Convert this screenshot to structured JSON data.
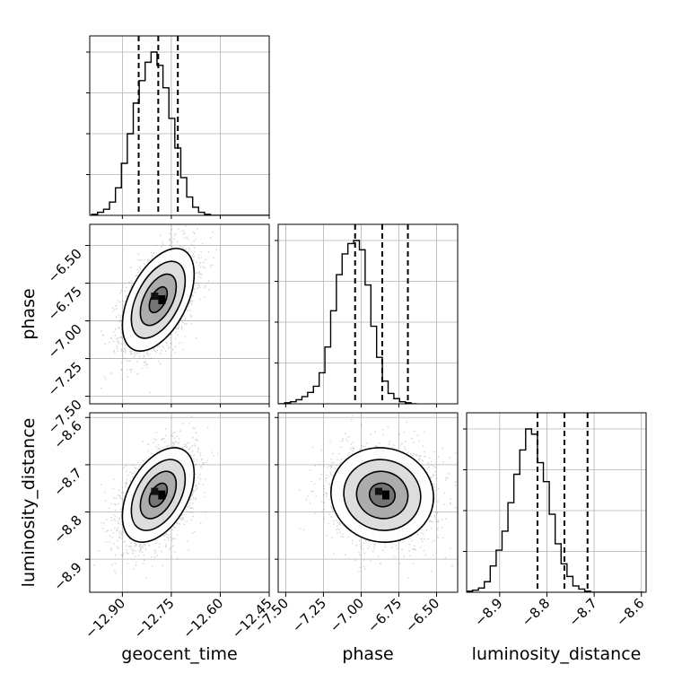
{
  "chart_data": {
    "type": "corner",
    "parameters": [
      "geocent_time",
      "phase",
      "luminosity_distance"
    ],
    "ranges": {
      "geocent_time": [
        -13.0,
        -12.45
      ],
      "phase": [
        -7.55,
        -6.36
      ],
      "luminosity_distance": [
        -8.97,
        -8.59
      ]
    },
    "ticks": {
      "geocent_time": [
        -12.9,
        -12.75,
        -12.6,
        -12.45
      ],
      "phase": [
        -7.5,
        -7.25,
        -7.0,
        -6.75,
        -6.5
      ],
      "luminosity_distance": [
        -8.9,
        -8.8,
        -8.7,
        -8.6
      ]
    },
    "tick_labels": {
      "geocent_time": [
        "−12.90",
        "−12.75",
        "−12.60",
        "−12.45"
      ],
      "phase_bottom": [
        "−7.50",
        "−7.25",
        "−7.00",
        "−6.75",
        "−6.50"
      ],
      "phase_left": [
        "−6.50",
        "−6.75",
        "−7.00",
        "−7.25",
        "−7.50"
      ],
      "luminosity_distance_bottom": [
        "−8.9",
        "−8.8",
        "−8.7",
        "−8.6"
      ],
      "luminosity_distance_left": [
        "−8.6",
        "−8.7",
        "−8.8",
        "−8.9"
      ]
    },
    "axis_labels": {
      "bottom": [
        "geocent_time",
        "phase",
        "luminosity_distance"
      ],
      "left": [
        "phase",
        "luminosity_distance"
      ]
    },
    "quantiles": {
      "geocent_time": [
        -12.85,
        -12.79,
        -12.73
      ],
      "phase": [
        -7.04,
        -6.86,
        -6.69
      ],
      "luminosity_distance": [
        -8.82,
        -8.763,
        -8.714
      ]
    },
    "histograms": {
      "geocent_time": {
        "bin_start": -12.994,
        "bin_width": 0.0182,
        "counts": [
          1,
          3,
          6,
          13,
          27,
          51,
          80,
          110,
          132,
          150,
          160,
          147,
          125,
          95,
          66,
          37,
          18,
          8,
          3,
          1,
          0,
          0,
          0,
          0,
          0,
          0,
          0,
          0,
          0,
          0
        ]
      },
      "phase": {
        "bin_start": -7.545,
        "bin_width": 0.0381,
        "counts": [
          0,
          1,
          2,
          4,
          7,
          11,
          17,
          30,
          55,
          90,
          125,
          145,
          155,
          158,
          149,
          115,
          75,
          45,
          22,
          10,
          5,
          2,
          1,
          0
        ]
      },
      "luminosity_distance": {
        "bin_start": -8.97,
        "bin_width": 0.0125,
        "counts": [
          1,
          2,
          4,
          10,
          25,
          40,
          58,
          85,
          112,
          135,
          155,
          150,
          123,
          105,
          74,
          46,
          27,
          15,
          6,
          3,
          1,
          0,
          0,
          0,
          0,
          0,
          0,
          0,
          0,
          0
        ]
      }
    },
    "pairs": [
      {
        "x": "geocent_time",
        "y": "phase",
        "center": [
          -12.79,
          -6.86
        ],
        "sd": [
          0.055,
          0.17
        ],
        "rho": 0.5
      },
      {
        "x": "geocent_time",
        "y": "luminosity_distance",
        "center": [
          -12.79,
          -8.764
        ],
        "sd": [
          0.055,
          0.05
        ],
        "rho": 0.45
      },
      {
        "x": "phase",
        "y": "luminosity_distance",
        "center": [
          -6.86,
          -8.764
        ],
        "sd": [
          0.17,
          0.05
        ],
        "rho": -0.05
      }
    ],
    "contour_levels": [
      0.5,
      1.0,
      1.5,
      2.0
    ],
    "grid": true,
    "colors": {
      "line": "#000000",
      "grid": "#b0b0b0",
      "scatter": "#808080"
    }
  }
}
